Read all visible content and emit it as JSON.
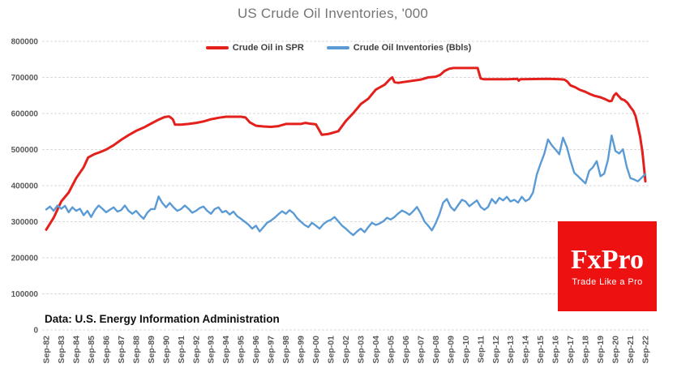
{
  "title": "US Crude Oil Inventories, '000",
  "source_note": "Data: U.S. Energy Information Administration",
  "logo": {
    "name": "FxPro",
    "tagline": "Trade Like a Pro",
    "bg_color": "#ee1111",
    "text_color": "#ffffff"
  },
  "colors": {
    "spr_line": "#e3201b",
    "inventories_line": "#5b9bd5",
    "gridline": "#d9d9d9",
    "axis_text": "#595959",
    "title_text": "#757575"
  },
  "chart_data": {
    "type": "line",
    "title": "US Crude Oil Inventories, '000",
    "xlabel": "",
    "ylabel": "",
    "x_unit": "years since Sep-1982",
    "y_unit": "thousand barrels",
    "ylim": [
      0,
      800000
    ],
    "xlim": [
      0,
      40
    ],
    "grid": "horizontal-dashed",
    "legend_position": "top-center",
    "y_ticks": [
      0,
      100000,
      200000,
      300000,
      400000,
      500000,
      600000,
      700000,
      800000
    ],
    "x_ticks": [
      "Sep-82",
      "Sep-83",
      "Sep-84",
      "Sep-85",
      "Sep-86",
      "Sep-87",
      "Sep-88",
      "Sep-89",
      "Sep-90",
      "Sep-91",
      "Sep-92",
      "Sep-93",
      "Sep-94",
      "Sep-95",
      "Sep-96",
      "Sep-97",
      "Sep-98",
      "Sep-99",
      "Sep-00",
      "Sep-01",
      "Sep-02",
      "Sep-03",
      "Sep-04",
      "Sep-05",
      "Sep-06",
      "Sep-07",
      "Sep-08",
      "Sep-09",
      "Sep-10",
      "Sep-11",
      "Sep-12",
      "Sep-13",
      "Sep-14",
      "Sep-15",
      "Sep-16",
      "Sep-17",
      "Sep-18",
      "Sep-19",
      "Sep-20",
      "Sep-21",
      "Sep-22"
    ],
    "series": [
      {
        "name": "Crude Oil in SPR",
        "color": "#e3201b",
        "width": 3,
        "points": [
          [
            0,
            278000
          ],
          [
            0.5,
            311000
          ],
          [
            1,
            356000
          ],
          [
            1.5,
            381000
          ],
          [
            2,
            421000
          ],
          [
            2.5,
            451000
          ],
          [
            2.8,
            478000
          ],
          [
            3.2,
            487000
          ],
          [
            3.6,
            493000
          ],
          [
            4,
            500000
          ],
          [
            4.5,
            512000
          ],
          [
            5,
            527000
          ],
          [
            5.5,
            540000
          ],
          [
            6,
            552000
          ],
          [
            6.5,
            561000
          ],
          [
            7,
            572000
          ],
          [
            7.5,
            583000
          ],
          [
            7.9,
            590000
          ],
          [
            8.2,
            592000
          ],
          [
            8.45,
            584000
          ],
          [
            8.6,
            569000
          ],
          [
            9,
            569000
          ],
          [
            9.5,
            571000
          ],
          [
            10,
            574000
          ],
          [
            10.5,
            578000
          ],
          [
            11,
            584000
          ],
          [
            11.5,
            588000
          ],
          [
            12,
            591000
          ],
          [
            13,
            591000
          ],
          [
            13.3,
            589000
          ],
          [
            13.6,
            575000
          ],
          [
            14,
            566000
          ],
          [
            14.5,
            564000
          ],
          [
            15,
            563000
          ],
          [
            15.5,
            565000
          ],
          [
            16,
            571000
          ],
          [
            17,
            571000
          ],
          [
            17.3,
            574000
          ],
          [
            17.6,
            572000
          ],
          [
            18,
            570000
          ],
          [
            18.2,
            556000
          ],
          [
            18.4,
            541000
          ],
          [
            18.8,
            543000
          ],
          [
            19,
            545000
          ],
          [
            19.5,
            551000
          ],
          [
            20,
            579000
          ],
          [
            20.5,
            601000
          ],
          [
            21,
            626000
          ],
          [
            21.5,
            641000
          ],
          [
            22,
            666000
          ],
          [
            22.3,
            673000
          ],
          [
            22.6,
            680000
          ],
          [
            22.85,
            691000
          ],
          [
            23,
            697000
          ],
          [
            23.1,
            700000
          ],
          [
            23.25,
            687000
          ],
          [
            23.5,
            685000
          ],
          [
            24,
            688000
          ],
          [
            24.5,
            691000
          ],
          [
            25,
            694000
          ],
          [
            25.5,
            700000
          ],
          [
            26,
            702000
          ],
          [
            26.3,
            707000
          ],
          [
            26.6,
            718000
          ],
          [
            26.9,
            724000
          ],
          [
            27.2,
            726000
          ],
          [
            28.8,
            726000
          ],
          [
            29,
            697000
          ],
          [
            29.2,
            695000
          ],
          [
            30.8,
            695000
          ],
          [
            31.45,
            696000
          ],
          [
            31.55,
            691000
          ],
          [
            31.65,
            695000
          ],
          [
            33.5,
            696000
          ],
          [
            34.3,
            695000
          ],
          [
            34.6,
            694000
          ],
          [
            34.8,
            688000
          ],
          [
            35,
            678000
          ],
          [
            35.3,
            673000
          ],
          [
            35.6,
            666000
          ],
          [
            36,
            660000
          ],
          [
            36.3,
            654000
          ],
          [
            36.6,
            649000
          ],
          [
            37,
            645000
          ],
          [
            37.3,
            640000
          ],
          [
            37.6,
            634000
          ],
          [
            37.75,
            635000
          ],
          [
            37.9,
            650000
          ],
          [
            38.05,
            656000
          ],
          [
            38.2,
            649000
          ],
          [
            38.4,
            640000
          ],
          [
            38.6,
            637000
          ],
          [
            38.8,
            630000
          ],
          [
            39,
            618000
          ],
          [
            39.2,
            607000
          ],
          [
            39.35,
            592000
          ],
          [
            39.5,
            564000
          ],
          [
            39.65,
            536000
          ],
          [
            39.8,
            494000
          ],
          [
            39.9,
            453000
          ],
          [
            40,
            412000
          ]
        ]
      },
      {
        "name": "Crude Oil Inventories (Bbls)",
        "color": "#5b9bd5",
        "width": 2.4,
        "points": [
          [
            0,
            334000
          ],
          [
            0.25,
            342000
          ],
          [
            0.5,
            330000
          ],
          [
            0.75,
            345000
          ],
          [
            1,
            336000
          ],
          [
            1.25,
            344000
          ],
          [
            1.5,
            326000
          ],
          [
            1.75,
            340000
          ],
          [
            2,
            330000
          ],
          [
            2.25,
            336000
          ],
          [
            2.5,
            318000
          ],
          [
            2.75,
            330000
          ],
          [
            3,
            313000
          ],
          [
            3.25,
            332000
          ],
          [
            3.5,
            345000
          ],
          [
            3.75,
            336000
          ],
          [
            4,
            326000
          ],
          [
            4.25,
            333000
          ],
          [
            4.5,
            340000
          ],
          [
            4.75,
            328000
          ],
          [
            5,
            332000
          ],
          [
            5.25,
            345000
          ],
          [
            5.5,
            330000
          ],
          [
            5.75,
            322000
          ],
          [
            6,
            330000
          ],
          [
            6.25,
            318000
          ],
          [
            6.5,
            308000
          ],
          [
            6.75,
            325000
          ],
          [
            7,
            335000
          ],
          [
            7.25,
            335000
          ],
          [
            7.5,
            370000
          ],
          [
            7.75,
            352000
          ],
          [
            8,
            340000
          ],
          [
            8.25,
            352000
          ],
          [
            8.5,
            340000
          ],
          [
            8.75,
            330000
          ],
          [
            9,
            335000
          ],
          [
            9.25,
            345000
          ],
          [
            9.5,
            336000
          ],
          [
            9.75,
            325000
          ],
          [
            10,
            330000
          ],
          [
            10.25,
            338000
          ],
          [
            10.5,
            342000
          ],
          [
            10.75,
            330000
          ],
          [
            11,
            322000
          ],
          [
            11.25,
            335000
          ],
          [
            11.5,
            340000
          ],
          [
            11.75,
            326000
          ],
          [
            12,
            330000
          ],
          [
            12.25,
            320000
          ],
          [
            12.5,
            328000
          ],
          [
            12.75,
            315000
          ],
          [
            13,
            308000
          ],
          [
            13.25,
            300000
          ],
          [
            13.5,
            292000
          ],
          [
            13.75,
            281000
          ],
          [
            14,
            289000
          ],
          [
            14.25,
            273000
          ],
          [
            14.5,
            285000
          ],
          [
            14.75,
            297000
          ],
          [
            15,
            303000
          ],
          [
            15.25,
            311000
          ],
          [
            15.5,
            321000
          ],
          [
            15.75,
            329000
          ],
          [
            16,
            322000
          ],
          [
            16.25,
            332000
          ],
          [
            16.5,
            324000
          ],
          [
            16.75,
            310000
          ],
          [
            17,
            300000
          ],
          [
            17.25,
            291000
          ],
          [
            17.5,
            285000
          ],
          [
            17.75,
            297000
          ],
          [
            18,
            289000
          ],
          [
            18.25,
            281000
          ],
          [
            18.5,
            293000
          ],
          [
            18.75,
            301000
          ],
          [
            19,
            305000
          ],
          [
            19.25,
            313000
          ],
          [
            19.5,
            301000
          ],
          [
            19.75,
            289000
          ],
          [
            20,
            281000
          ],
          [
            20.25,
            271000
          ],
          [
            20.5,
            263000
          ],
          [
            20.75,
            273000
          ],
          [
            21,
            281000
          ],
          [
            21.25,
            271000
          ],
          [
            21.5,
            285000
          ],
          [
            21.75,
            297000
          ],
          [
            22,
            291000
          ],
          [
            22.25,
            295000
          ],
          [
            22.5,
            301000
          ],
          [
            22.75,
            311000
          ],
          [
            23,
            306000
          ],
          [
            23.25,
            313000
          ],
          [
            23.5,
            323000
          ],
          [
            23.75,
            331000
          ],
          [
            24,
            326000
          ],
          [
            24.25,
            319000
          ],
          [
            24.5,
            329000
          ],
          [
            24.75,
            341000
          ],
          [
            25,
            323000
          ],
          [
            25.25,
            301000
          ],
          [
            25.5,
            289000
          ],
          [
            25.75,
            276000
          ],
          [
            26,
            296000
          ],
          [
            26.25,
            321000
          ],
          [
            26.5,
            353000
          ],
          [
            26.75,
            363000
          ],
          [
            27,
            341000
          ],
          [
            27.25,
            331000
          ],
          [
            27.5,
            346000
          ],
          [
            27.75,
            361000
          ],
          [
            28,
            356000
          ],
          [
            28.25,
            343000
          ],
          [
            28.5,
            351000
          ],
          [
            28.75,
            359000
          ],
          [
            29,
            341000
          ],
          [
            29.25,
            333000
          ],
          [
            29.5,
            341000
          ],
          [
            29.75,
            363000
          ],
          [
            30,
            351000
          ],
          [
            30.25,
            366000
          ],
          [
            30.5,
            359000
          ],
          [
            30.75,
            369000
          ],
          [
            31,
            356000
          ],
          [
            31.25,
            361000
          ],
          [
            31.5,
            353000
          ],
          [
            31.75,
            369000
          ],
          [
            32,
            357000
          ],
          [
            32.25,
            363000
          ],
          [
            32.5,
            381000
          ],
          [
            32.75,
            431000
          ],
          [
            33,
            461000
          ],
          [
            33.25,
            488000
          ],
          [
            33.5,
            528000
          ],
          [
            33.75,
            512000
          ],
          [
            34,
            500000
          ],
          [
            34.25,
            487000
          ],
          [
            34.5,
            533000
          ],
          [
            34.75,
            508000
          ],
          [
            35,
            470000
          ],
          [
            35.25,
            436000
          ],
          [
            35.5,
            426000
          ],
          [
            35.75,
            416000
          ],
          [
            36,
            406000
          ],
          [
            36.25,
            441000
          ],
          [
            36.5,
            451000
          ],
          [
            36.75,
            468000
          ],
          [
            37,
            426000
          ],
          [
            37.25,
            433000
          ],
          [
            37.5,
            471000
          ],
          [
            37.75,
            539000
          ],
          [
            38,
            496000
          ],
          [
            38.25,
            489000
          ],
          [
            38.5,
            501000
          ],
          [
            38.75,
            453000
          ],
          [
            39,
            421000
          ],
          [
            39.25,
            417000
          ],
          [
            39.5,
            412000
          ],
          [
            39.75,
            422000
          ],
          [
            40,
            432000
          ]
        ]
      }
    ]
  }
}
